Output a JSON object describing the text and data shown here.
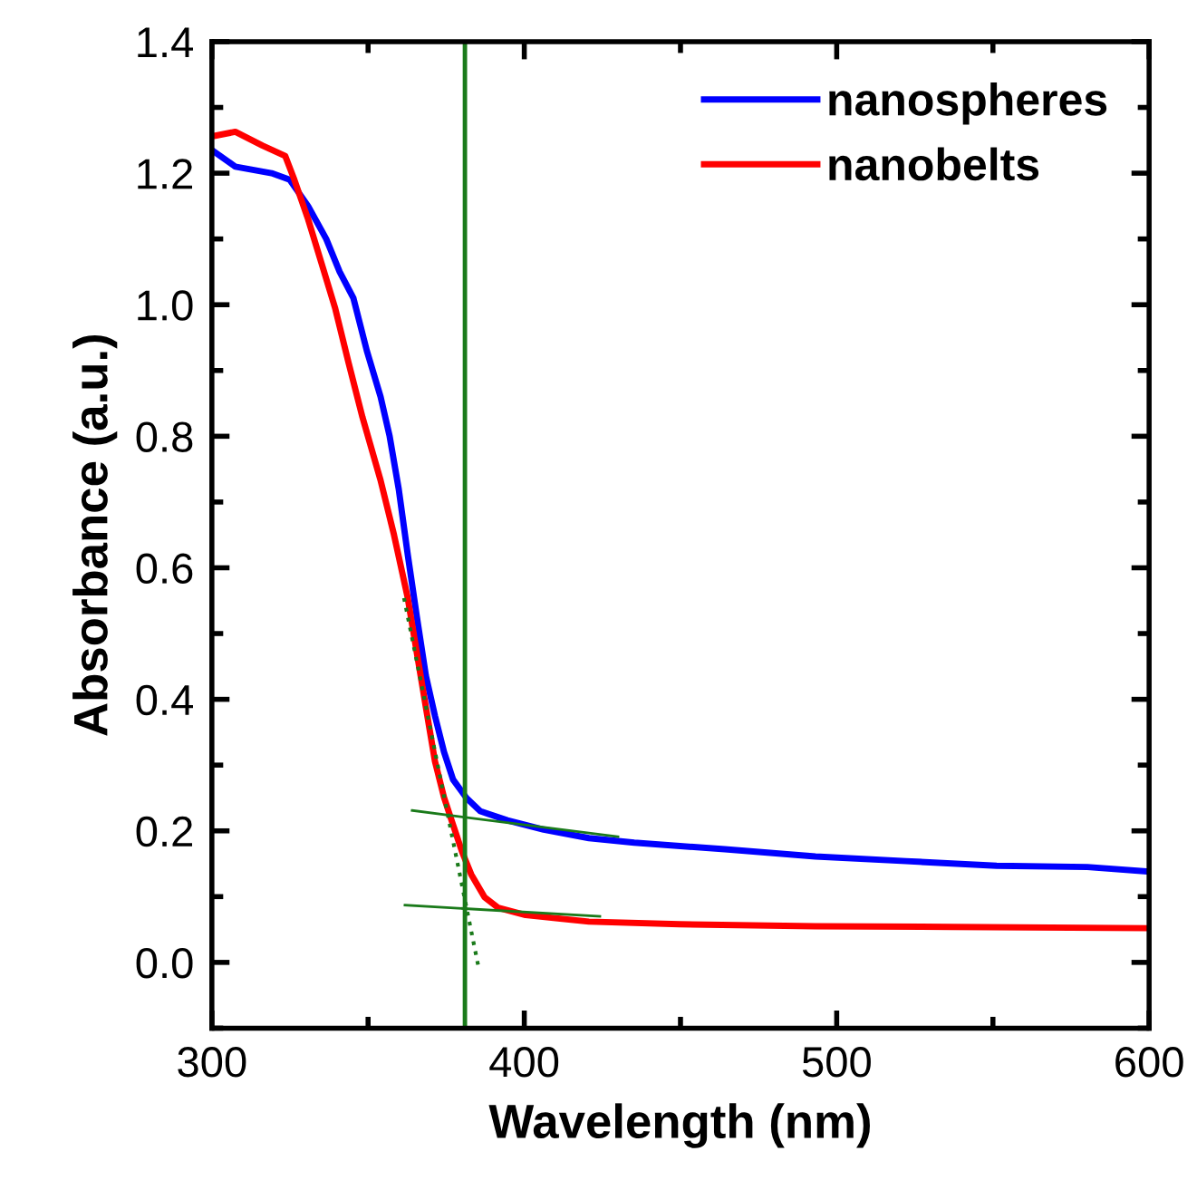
{
  "chart_data": {
    "type": "line",
    "xlabel": "Wavelength (nm)",
    "ylabel": "Absorbance (a.u.)",
    "xlim": [
      300,
      600
    ],
    "ylim": [
      -0.1,
      1.4
    ],
    "xticks": [
      300,
      400,
      500,
      600
    ],
    "yticks": [
      {
        "value": 0,
        "label": "0.0"
      },
      0.2,
      0.4,
      0.6,
      0.8,
      {
        "value": 1,
        "label": "1.0"
      },
      1.2,
      1.4
    ],
    "grid": false,
    "legend": "top right",
    "line_style": "solid",
    "marker": "none",
    "series": [
      {
        "name": "nanospheres",
        "color": "#0000ff",
        "x": [
          300,
          307.5,
          319.1,
          324.9,
          330.8,
          336.6,
          340.9,
          345.3,
          349.6,
          354.0,
          356.9,
          359.8,
          362.7,
          365.6,
          368.5,
          371.4,
          374.3,
          377.2,
          381.5,
          385.9,
          394.6,
          406.2,
          420.7,
          435.2,
          464.2,
          493.2,
          522.2,
          551.2,
          580.2,
          600
        ],
        "values": [
          1.235,
          1.21,
          1.2,
          1.19,
          1.15,
          1.1,
          1.05,
          1.01,
          0.93,
          0.86,
          0.8,
          0.72,
          0.62,
          0.526,
          0.436,
          0.375,
          0.32,
          0.278,
          0.25,
          0.23,
          0.216,
          0.202,
          0.189,
          0.182,
          0.172,
          0.161,
          0.154,
          0.147,
          0.145,
          0.138
        ]
      },
      {
        "name": "nanobelts",
        "color": "#ff0000",
        "x": [
          300,
          307.5,
          316.2,
          323.5,
          326.4,
          330.8,
          335.1,
          339.5,
          343.8,
          348.2,
          354.0,
          358.3,
          362.7,
          365.6,
          368.5,
          371.4,
          374.3,
          377.2,
          380.1,
          383.0,
          387.3,
          391.7,
          400.4,
          420.7,
          449.7,
          493.2,
          536.7,
          600
        ],
        "values": [
          1.256,
          1.263,
          1.242,
          1.226,
          1.19,
          1.13,
          1.063,
          0.994,
          0.911,
          0.829,
          0.733,
          0.65,
          0.554,
          0.471,
          0.388,
          0.306,
          0.251,
          0.209,
          0.168,
          0.134,
          0.099,
          0.083,
          0.072,
          0.062,
          0.058,
          0.055,
          0.054,
          0.052
        ]
      },
      {
        "type": "line",
        "color": "#1a7a1a",
        "x": [
          364.1,
          430.0
        ],
        "values": [
          0.231,
          0.191
        ]
      },
      {
        "type": "line",
        "color": "#1a7a1a",
        "x": [
          361.8,
          424.2
        ],
        "values": [
          0.087,
          0.07
        ]
      },
      {
        "type": "line",
        "color": "#1a7a1a",
        "line_style": "dotted",
        "x": [
          361.5,
          385.3
        ],
        "values": [
          0.554,
          -0.006
        ]
      }
    ],
    "ref_lines": [
      {
        "axis": "x",
        "value": 381,
        "color": "#1a7a1a"
      }
    ]
  }
}
